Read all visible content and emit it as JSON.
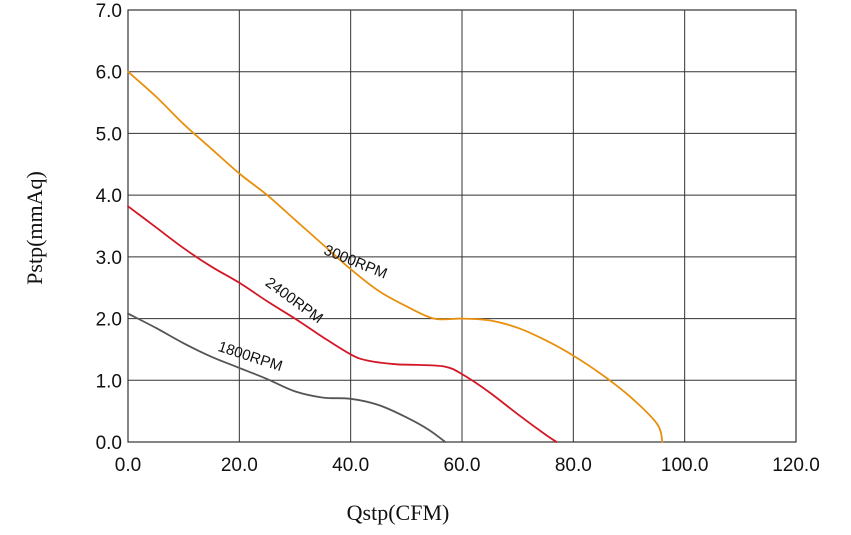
{
  "chart_data": {
    "type": "line",
    "title": "",
    "xlabel": "Qstp(CFM)",
    "ylabel": "Pstp(mmAq)",
    "xlim": [
      0,
      120
    ],
    "ylim": [
      0,
      7
    ],
    "grid": true,
    "x_ticks": [
      "0.0",
      "20.0",
      "40.0",
      "60.0",
      "80.0",
      "100.0",
      "120.0"
    ],
    "y_ticks": [
      "0.0",
      "1.0",
      "2.0",
      "3.0",
      "4.0",
      "5.0",
      "6.0",
      "7.0"
    ],
    "series": [
      {
        "name": "3000RPM",
        "color": "#e8900e",
        "points": [
          [
            0,
            6.0
          ],
          [
            5,
            5.6
          ],
          [
            10,
            5.15
          ],
          [
            15,
            4.75
          ],
          [
            20,
            4.35
          ],
          [
            25,
            4.0
          ],
          [
            30,
            3.6
          ],
          [
            35,
            3.2
          ],
          [
            40,
            2.8
          ],
          [
            45,
            2.45
          ],
          [
            50,
            2.2
          ],
          [
            55,
            2.0
          ],
          [
            60,
            2.0
          ],
          [
            65,
            1.97
          ],
          [
            70,
            1.85
          ],
          [
            75,
            1.65
          ],
          [
            80,
            1.4
          ],
          [
            85,
            1.1
          ],
          [
            90,
            0.75
          ],
          [
            95,
            0.3
          ],
          [
            96,
            0.0
          ]
        ]
      },
      {
        "name": "2400RPM",
        "color": "#d41626",
        "points": [
          [
            0,
            3.82
          ],
          [
            5,
            3.48
          ],
          [
            10,
            3.14
          ],
          [
            15,
            2.84
          ],
          [
            20,
            2.58
          ],
          [
            25,
            2.28
          ],
          [
            30,
            2.0
          ],
          [
            35,
            1.7
          ],
          [
            40,
            1.42
          ],
          [
            43,
            1.32
          ],
          [
            48,
            1.26
          ],
          [
            52,
            1.25
          ],
          [
            57,
            1.22
          ],
          [
            60,
            1.1
          ],
          [
            65,
            0.8
          ],
          [
            70,
            0.45
          ],
          [
            75,
            0.12
          ],
          [
            77,
            0.0
          ]
        ]
      },
      {
        "name": "1800RPM",
        "color": "#555555",
        "points": [
          [
            0,
            2.08
          ],
          [
            5,
            1.85
          ],
          [
            10,
            1.6
          ],
          [
            15,
            1.38
          ],
          [
            20,
            1.2
          ],
          [
            25,
            1.02
          ],
          [
            30,
            0.82
          ],
          [
            35,
            0.72
          ],
          [
            40,
            0.7
          ],
          [
            45,
            0.6
          ],
          [
            50,
            0.4
          ],
          [
            54,
            0.2
          ],
          [
            57,
            0.0
          ]
        ]
      }
    ]
  }
}
